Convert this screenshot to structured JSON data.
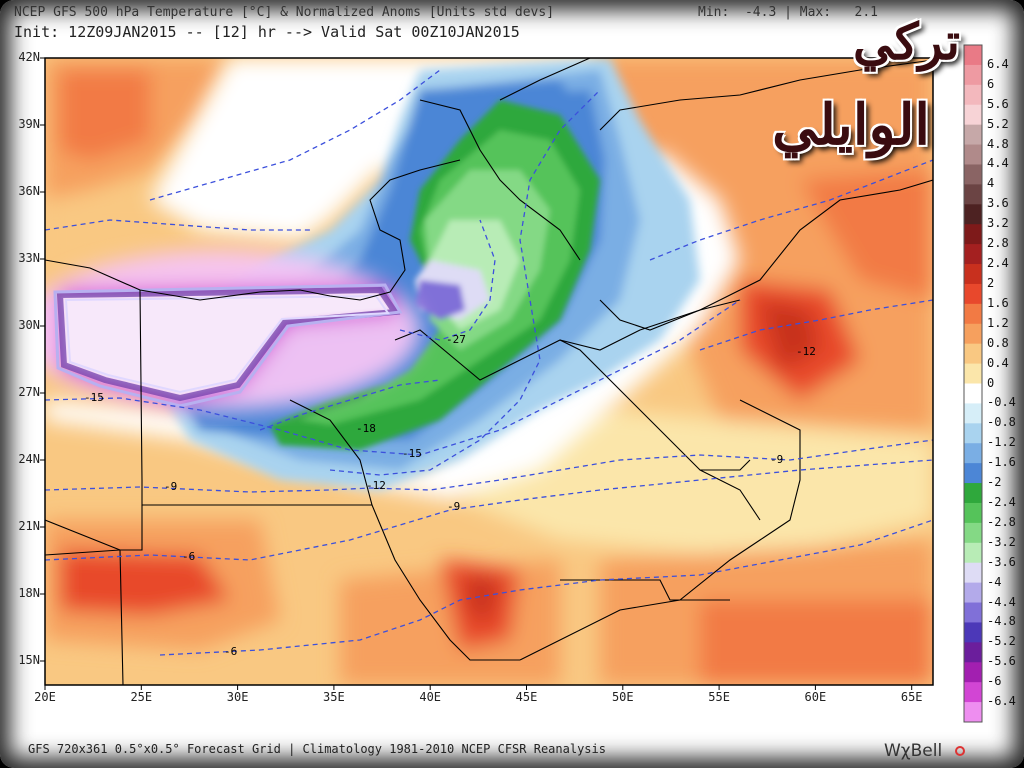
{
  "header": {
    "title": "NCEP GFS 500 hPa Temperature [°C] & Normalized Anoms [Units std devs]",
    "minmax": "Min:  -4.3 | Max:   2.1",
    "subtitle": "Init: 12Z09JAN2015 -- [12] hr --> Valid Sat 00Z10JAN2015"
  },
  "footer": {
    "grid_info": "GFS 720x361 0.5°x0.5° Forecast Grid | Climatology 1981-2010 NCEP CFSR Reanalysis",
    "brand": "WχBell"
  },
  "watermark": {
    "line1": "تركي",
    "line2": "الوايلي"
  },
  "map": {
    "lat_labels": [
      "42N",
      "39N",
      "36N",
      "33N",
      "30N",
      "27N",
      "24N",
      "21N",
      "18N",
      "15N"
    ],
    "lon_labels": [
      "20E",
      "25E",
      "30E",
      "35E",
      "40E",
      "45E",
      "50E",
      "55E",
      "60E",
      "65E"
    ],
    "contour_labels": [
      "-27",
      "-18",
      "-15",
      "-15",
      "-12",
      "-12",
      "-9",
      "-9",
      "-9",
      "-6",
      "-6"
    ]
  },
  "colorbar": {
    "labels": [
      "6.4",
      "6",
      "5.6",
      "5.2",
      "4.8",
      "4.4",
      "4",
      "3.6",
      "3.2",
      "2.8",
      "2.4",
      "2",
      "1.6",
      "1.2",
      "0.8",
      "0.4",
      "0",
      "-0.4",
      "-0.8",
      "-1.2",
      "-1.6",
      "-2",
      "-2.4",
      "-2.8",
      "-3.2",
      "-3.6",
      "-4",
      "-4.4",
      "-4.8",
      "-5.2",
      "-5.6",
      "-6",
      "-6.4"
    ],
    "colors": [
      "#e97a86",
      "#ee9aa2",
      "#f3b8bd",
      "#f7d3d6",
      "#c6a8a8",
      "#b08a8a",
      "#8a6464",
      "#6b4444",
      "#4d2222",
      "#7e1a1a",
      "#a42020",
      "#c8301e",
      "#e8482c",
      "#f27a44",
      "#f6a05e",
      "#f9c882",
      "#fbe6aa",
      "#ffffff",
      "#d6eef8",
      "#a9d3ef",
      "#7aaee4",
      "#4c86d6",
      "#2fa83c",
      "#55c35a",
      "#84d985",
      "#b8ecb6",
      "#dedcf5",
      "#b3aaea",
      "#8070d8",
      "#4c38b8",
      "#6b1e9c",
      "#a21fb0",
      "#d245d4",
      "#ee8ef0"
    ]
  }
}
